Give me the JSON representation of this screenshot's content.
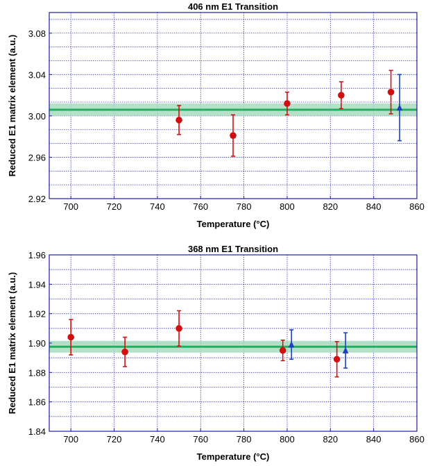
{
  "chart_data": [
    {
      "type": "scatter",
      "title": "406 nm E1 Transition",
      "xlabel": "Temperature (°C)",
      "ylabel": "Reduced E1 matrix element (a.u.)",
      "xlim": [
        690,
        860
      ],
      "ylim": [
        2.92,
        3.1
      ],
      "xticks": [
        700,
        720,
        740,
        760,
        780,
        800,
        820,
        840,
        860
      ],
      "yticks": [
        2.92,
        2.96,
        3.0,
        3.04,
        3.08
      ],
      "ytick_labels": [
        "2.92",
        "2.96",
        "3.00",
        "3.04",
        "3.08"
      ],
      "grid": true,
      "band": {
        "center": 3.006,
        "low": 3.0,
        "high": 3.012
      },
      "series": [
        {
          "marker": "circle",
          "color": "#d01010",
          "points": [
            {
              "x": 750,
              "y": 2.996,
              "err": 0.014
            },
            {
              "x": 775,
              "y": 2.981,
              "err": 0.02
            },
            {
              "x": 800,
              "y": 3.012,
              "err": 0.011
            },
            {
              "x": 825,
              "y": 3.02,
              "err": 0.013
            },
            {
              "x": 848,
              "y": 3.023,
              "err": 0.021
            }
          ]
        },
        {
          "marker": "triangle",
          "color": "#1f3fbf",
          "points": [
            {
              "x": 852,
              "y": 3.008,
              "err": 0.032
            }
          ]
        }
      ]
    },
    {
      "type": "scatter",
      "title": "368 nm E1 Transition",
      "xlabel": "Temperature (°C)",
      "ylabel": "Reduced E1 matrix element (a.u.)",
      "xlim": [
        690,
        860
      ],
      "ylim": [
        1.84,
        1.96
      ],
      "xticks": [
        700,
        720,
        740,
        760,
        780,
        800,
        820,
        840,
        860
      ],
      "yticks": [
        1.84,
        1.86,
        1.88,
        1.9,
        1.92,
        1.94,
        1.96
      ],
      "ytick_labels": [
        "1.84",
        "1.86",
        "1.88",
        "1.90",
        "1.92",
        "1.94",
        "1.96"
      ],
      "grid": true,
      "band": {
        "center": 1.8975,
        "low": 1.8935,
        "high": 1.9015
      },
      "series": [
        {
          "marker": "circle",
          "color": "#d01010",
          "points": [
            {
              "x": 700,
              "y": 1.904,
              "err": 0.012
            },
            {
              "x": 725,
              "y": 1.894,
              "err": 0.01
            },
            {
              "x": 750,
              "y": 1.91,
              "err": 0.012
            },
            {
              "x": 798,
              "y": 1.895,
              "err": 0.007
            },
            {
              "x": 823,
              "y": 1.889,
              "err": 0.012
            }
          ]
        },
        {
          "marker": "triangle",
          "color": "#1f3fbf",
          "points": [
            {
              "x": 802,
              "y": 1.899,
              "err": 0.01
            },
            {
              "x": 827,
              "y": 1.895,
              "err": 0.012
            }
          ]
        }
      ]
    }
  ],
  "colors": {
    "frame": "#1a1aa6",
    "grid": "#3a3ab8",
    "band_fill": "#a8dcc0",
    "band_line": "#22b060",
    "point_red": "#d01010",
    "point_blue": "#1f3fbf"
  }
}
